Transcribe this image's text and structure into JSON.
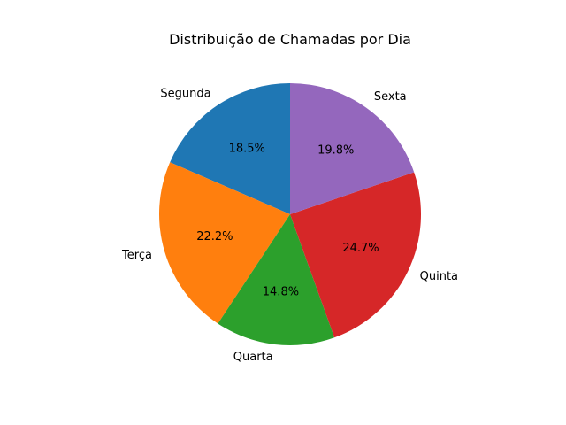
{
  "chart_data": {
    "type": "pie",
    "title": "Distribuição de Chamadas por Dia",
    "categories": [
      "Segunda",
      "Terça",
      "Quarta",
      "Quinta",
      "Sexta"
    ],
    "values": [
      18.5,
      22.2,
      14.8,
      24.7,
      19.8
    ],
    "value_labels": [
      "18.5%",
      "22.2%",
      "14.8%",
      "24.7%",
      "19.8%"
    ],
    "colors": [
      "#1f77b4",
      "#ff7f0e",
      "#2ca02c",
      "#d62728",
      "#9467bd"
    ],
    "start_angle_deg": 90,
    "direction": "counterclockwise"
  }
}
